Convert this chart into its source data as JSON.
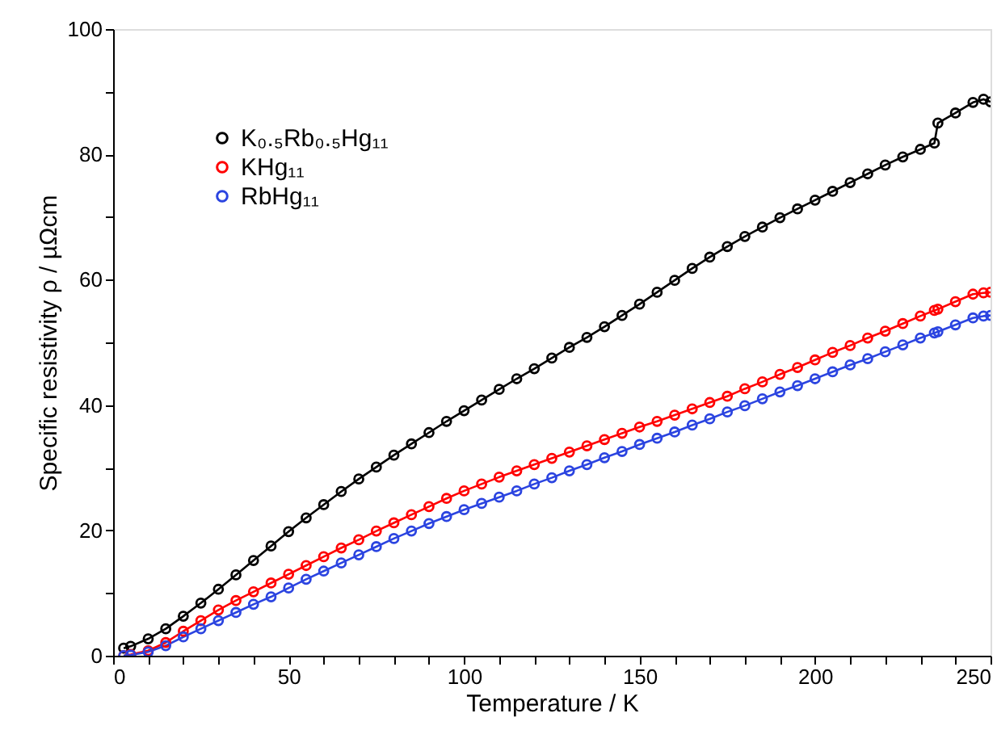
{
  "chart_data": {
    "type": "line",
    "xlabel": "Temperature / K",
    "ylabel": "Specific resistivity ρ / µΩcm",
    "x": [
      3,
      5,
      10,
      15,
      20,
      25,
      30,
      35,
      40,
      45,
      50,
      55,
      60,
      65,
      70,
      75,
      80,
      85,
      90,
      95,
      100,
      105,
      110,
      115,
      120,
      125,
      130,
      135,
      140,
      145,
      150,
      155,
      160,
      165,
      170,
      175,
      180,
      185,
      190,
      195,
      200,
      205,
      210,
      215,
      220,
      225,
      230,
      234,
      235,
      240,
      245,
      248,
      250
    ],
    "series": [
      {
        "name": "K₀.₅Rb₀.₅Hg₁₁",
        "color": "#000000",
        "values": [
          1.2,
          1.5,
          2.7,
          4.3,
          6.3,
          8.4,
          10.6,
          12.9,
          15.2,
          17.5,
          19.8,
          22,
          24.1,
          26.2,
          28.2,
          30.1,
          32,
          33.8,
          35.6,
          37.4,
          39.1,
          40.8,
          42.5,
          44.2,
          45.8,
          47.5,
          49.2,
          50.8,
          52.5,
          54.3,
          56.1,
          58,
          59.9,
          61.8,
          63.6,
          65.3,
          66.9,
          68.4,
          69.9,
          71.3,
          72.7,
          74.1,
          75.5,
          76.9,
          78.3,
          79.6,
          80.8,
          81.8,
          85,
          86.6,
          88.3,
          88.8,
          88.4
        ]
      },
      {
        "name": "KHg₁₁",
        "color": "#ff0000",
        "values": [
          0,
          0.2,
          0.8,
          2.1,
          3.9,
          5.6,
          7.3,
          8.8,
          10.2,
          11.6,
          13,
          14.4,
          15.8,
          17.2,
          18.5,
          19.9,
          21.2,
          22.5,
          23.8,
          25.1,
          26.3,
          27.4,
          28.5,
          29.5,
          30.5,
          31.5,
          32.5,
          33.5,
          34.5,
          35.5,
          36.5,
          37.4,
          38.4,
          39.4,
          40.4,
          41.4,
          42.6,
          43.7,
          44.9,
          46,
          47.2,
          48.4,
          49.5,
          50.7,
          51.8,
          53,
          54.2,
          55.1,
          55.3,
          56.5,
          57.7,
          57.9,
          58
        ]
      },
      {
        "name": "RbHg₁₁",
        "color": "#2b44e0",
        "values": [
          0,
          0.1,
          0.6,
          1.6,
          3,
          4.3,
          5.6,
          6.9,
          8.2,
          9.4,
          10.8,
          12.2,
          13.5,
          14.8,
          16.1,
          17.4,
          18.7,
          19.9,
          21.1,
          22.2,
          23.3,
          24.3,
          25.3,
          26.3,
          27.4,
          28.4,
          29.5,
          30.5,
          31.6,
          32.6,
          33.7,
          34.7,
          35.7,
          36.8,
          37.8,
          38.9,
          39.9,
          41,
          42.1,
          43.1,
          44.2,
          45.3,
          46.4,
          47.4,
          48.5,
          49.6,
          50.7,
          51.5,
          51.7,
          52.8,
          53.9,
          54.2,
          54.3
        ]
      }
    ],
    "xlim": [
      0,
      250
    ],
    "ylim": [
      0,
      100
    ],
    "xticks": [
      0,
      {
        "value": 10,
        "label": null
      },
      {
        "value": 20,
        "label": null
      },
      {
        "value": 30,
        "label": null
      },
      {
        "value": 40,
        "label": null
      },
      50,
      {
        "value": 60,
        "label": null
      },
      {
        "value": 70,
        "label": null
      },
      {
        "value": 80,
        "label": null
      },
      {
        "value": 90,
        "label": null
      },
      100,
      {
        "value": 110,
        "label": null
      },
      {
        "value": 120,
        "label": null
      },
      {
        "value": 130,
        "label": null
      },
      {
        "value": 140,
        "label": null
      },
      150,
      {
        "value": 160,
        "label": null
      },
      {
        "value": 170,
        "label": null
      },
      {
        "value": 180,
        "label": null
      },
      {
        "value": 190,
        "label": null
      },
      200,
      {
        "value": 210,
        "label": null
      },
      {
        "value": 220,
        "label": null
      },
      {
        "value": 230,
        "label": null
      },
      {
        "value": 240,
        "label": null
      },
      250
    ],
    "yticks": [
      0,
      {
        "value": 10,
        "label": null
      },
      20,
      {
        "value": 30,
        "label": null
      },
      40,
      {
        "value": 50,
        "label": null
      },
      60,
      {
        "value": 70,
        "label": null
      },
      80,
      {
        "value": 90,
        "label": null
      },
      100
    ],
    "marker": "circle",
    "legend": "top left",
    "grid": false
  }
}
